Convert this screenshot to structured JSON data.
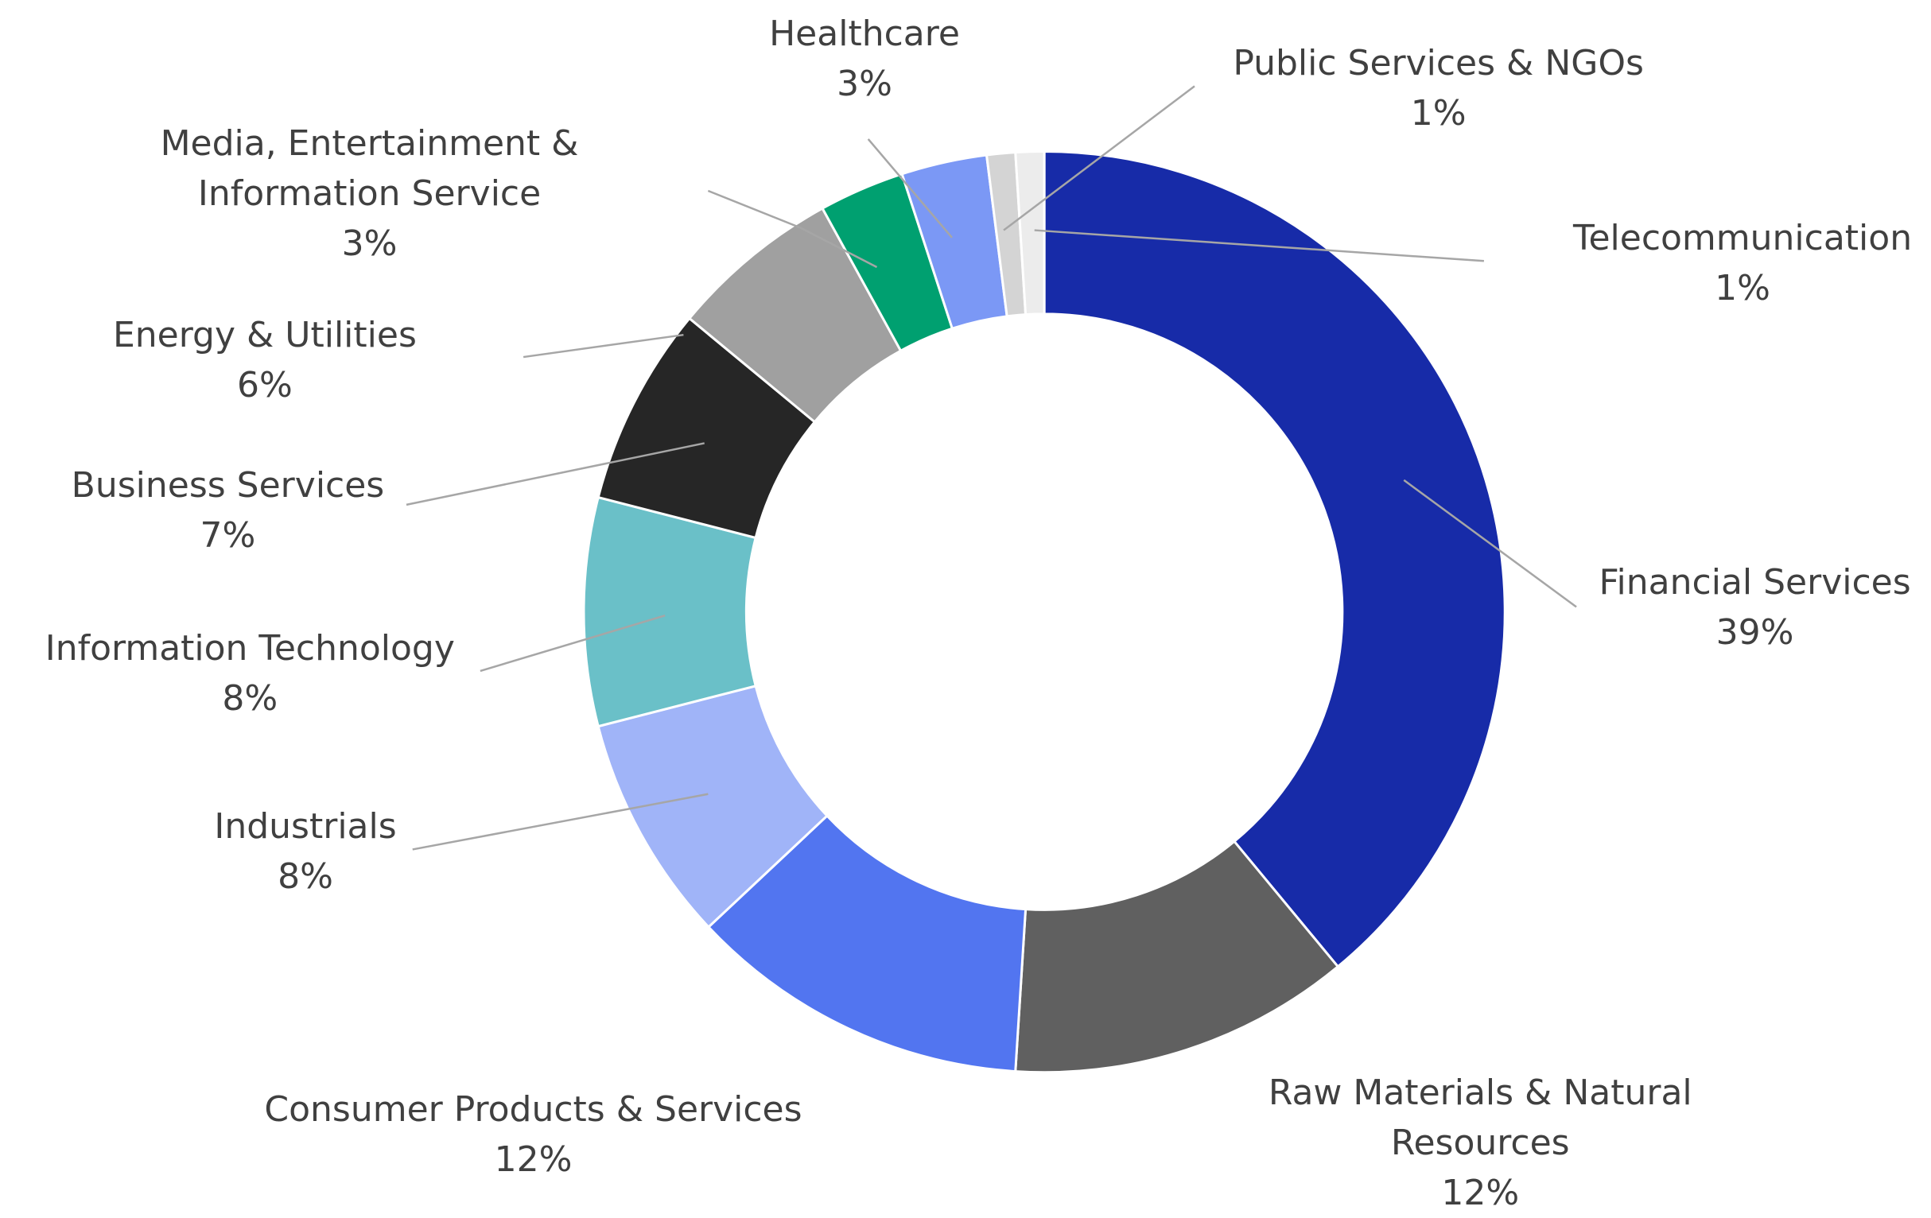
{
  "chart_data": {
    "type": "donut",
    "categories": [
      "Financial Services",
      "Raw Materials & Natural Resources",
      "Consumer Products & Services",
      "Industrials",
      "Information Technology",
      "Business Services",
      "Energy & Utilities",
      "Media, Entertainment & Information Service",
      "Healthcare",
      "Public Services & NGOs",
      "Telecommunication"
    ],
    "values": [
      39,
      12,
      12,
      8,
      8,
      7,
      6,
      3,
      3,
      1,
      1
    ],
    "value_labels": [
      "39%",
      "12%",
      "12%",
      "8%",
      "8%",
      "7%",
      "6%",
      "3%",
      "3%",
      "1%",
      "1%"
    ],
    "colors": [
      "#172ba8",
      "#606060",
      "#5275f0",
      "#a0b4f8",
      "#6ac0c8",
      "#262626",
      "#a0a0a0",
      "#00a070",
      "#7b98f5",
      "#d4d4d4",
      "#ececec"
    ]
  }
}
